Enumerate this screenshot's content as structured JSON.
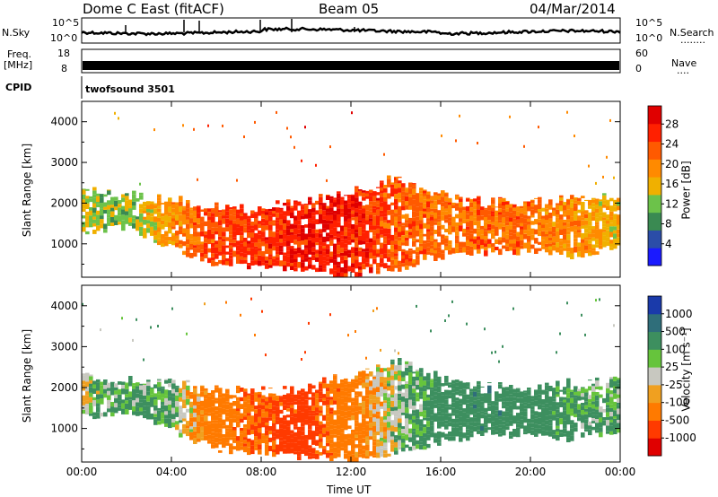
{
  "header": {
    "station": "Dome C East (fitACF)",
    "beam": "Beam 05",
    "date": "04/Mar/2014"
  },
  "noise_panel": {
    "left_label": "N.Sky",
    "left_ticks": [
      "10^5",
      "10^0"
    ],
    "right_label": "N.Search",
    "right_ticks": [
      "10^5",
      "10^0"
    ],
    "right_dots": "........"
  },
  "freq_panel": {
    "left_label_1": "Freq.",
    "left_label_2": "[MHz]",
    "left_ticks": [
      "18",
      "8"
    ],
    "right_label": "Nave",
    "right_ticks": [
      "60",
      "0"
    ],
    "right_dots": "...."
  },
  "cpid_panel": {
    "label": "CPID",
    "value": "twofsound  3501"
  },
  "chart_data": [
    {
      "type": "heatmap",
      "title": "",
      "xlabel": "",
      "ylabel": "Slant Range [km]",
      "x_ticks": [
        "00:00",
        "04:00",
        "08:00",
        "12:00",
        "16:00",
        "20:00",
        "00:00"
      ],
      "y_ticks": [
        1000,
        2000,
        3000,
        4000
      ],
      "ylim": [
        180,
        4500
      ],
      "colorbar": {
        "label": "Power [dB]",
        "ticks": [
          "4",
          "8",
          "12",
          "16",
          "20",
          "24",
          "28"
        ],
        "colors": [
          "#1a1aff",
          "#2b4da8",
          "#3a8a52",
          "#6cc24a",
          "#f0b000",
          "#ff8a00",
          "#ff5a00",
          "#ff2000",
          "#e00000"
        ]
      },
      "band": {
        "description_hours": [
          0,
          2,
          4,
          6,
          8,
          10,
          12,
          14,
          16,
          18,
          20,
          22,
          24
        ],
        "echo_top_km": [
          2300,
          2200,
          2100,
          1900,
          1900,
          2000,
          2300,
          2600,
          2200,
          2000,
          2000,
          2100,
          2200
        ],
        "echo_bottom_km": [
          1300,
          1400,
          900,
          500,
          400,
          300,
          250,
          400,
          700,
          800,
          800,
          700,
          1000
        ],
        "power_db": [
          14,
          12,
          20,
          26,
          27,
          29,
          29,
          24,
          22,
          24,
          22,
          20,
          16
        ]
      }
    },
    {
      "type": "heatmap",
      "title": "",
      "xlabel": "Time UT",
      "ylabel": "Slant Range [km]",
      "x_ticks": [
        "00:00",
        "04:00",
        "08:00",
        "12:00",
        "16:00",
        "20:00",
        "00:00"
      ],
      "y_ticks": [
        1000,
        2000,
        3000,
        4000
      ],
      "ylim": [
        180,
        4500
      ],
      "colorbar": {
        "label": "Velocity [m s⁻¹]",
        "ticks": [
          "1000",
          "500",
          "100",
          "25",
          "-25",
          "-100",
          "-500",
          "-1000"
        ],
        "colors": [
          "#1a3aaa",
          "#2f6e7a",
          "#3d8f5f",
          "#66c43c",
          "#c8c8c0",
          "#f0a020",
          "#ff7a00",
          "#ff3a00",
          "#e00000"
        ]
      },
      "band": {
        "description_hours": [
          0,
          2,
          4,
          6,
          8,
          10,
          12,
          14,
          16,
          18,
          20,
          22,
          24
        ],
        "echo_top_km": [
          2300,
          2200,
          2100,
          1900,
          1900,
          2000,
          2300,
          2600,
          2200,
          2000,
          2000,
          2100,
          2200
        ],
        "echo_bottom_km": [
          1300,
          1400,
          900,
          500,
          400,
          300,
          250,
          400,
          700,
          800,
          800,
          700,
          1000
        ],
        "velocity_ms": [
          25,
          80,
          60,
          -200,
          -300,
          -400,
          -150,
          30,
          150,
          200,
          150,
          80,
          40
        ]
      }
    }
  ]
}
